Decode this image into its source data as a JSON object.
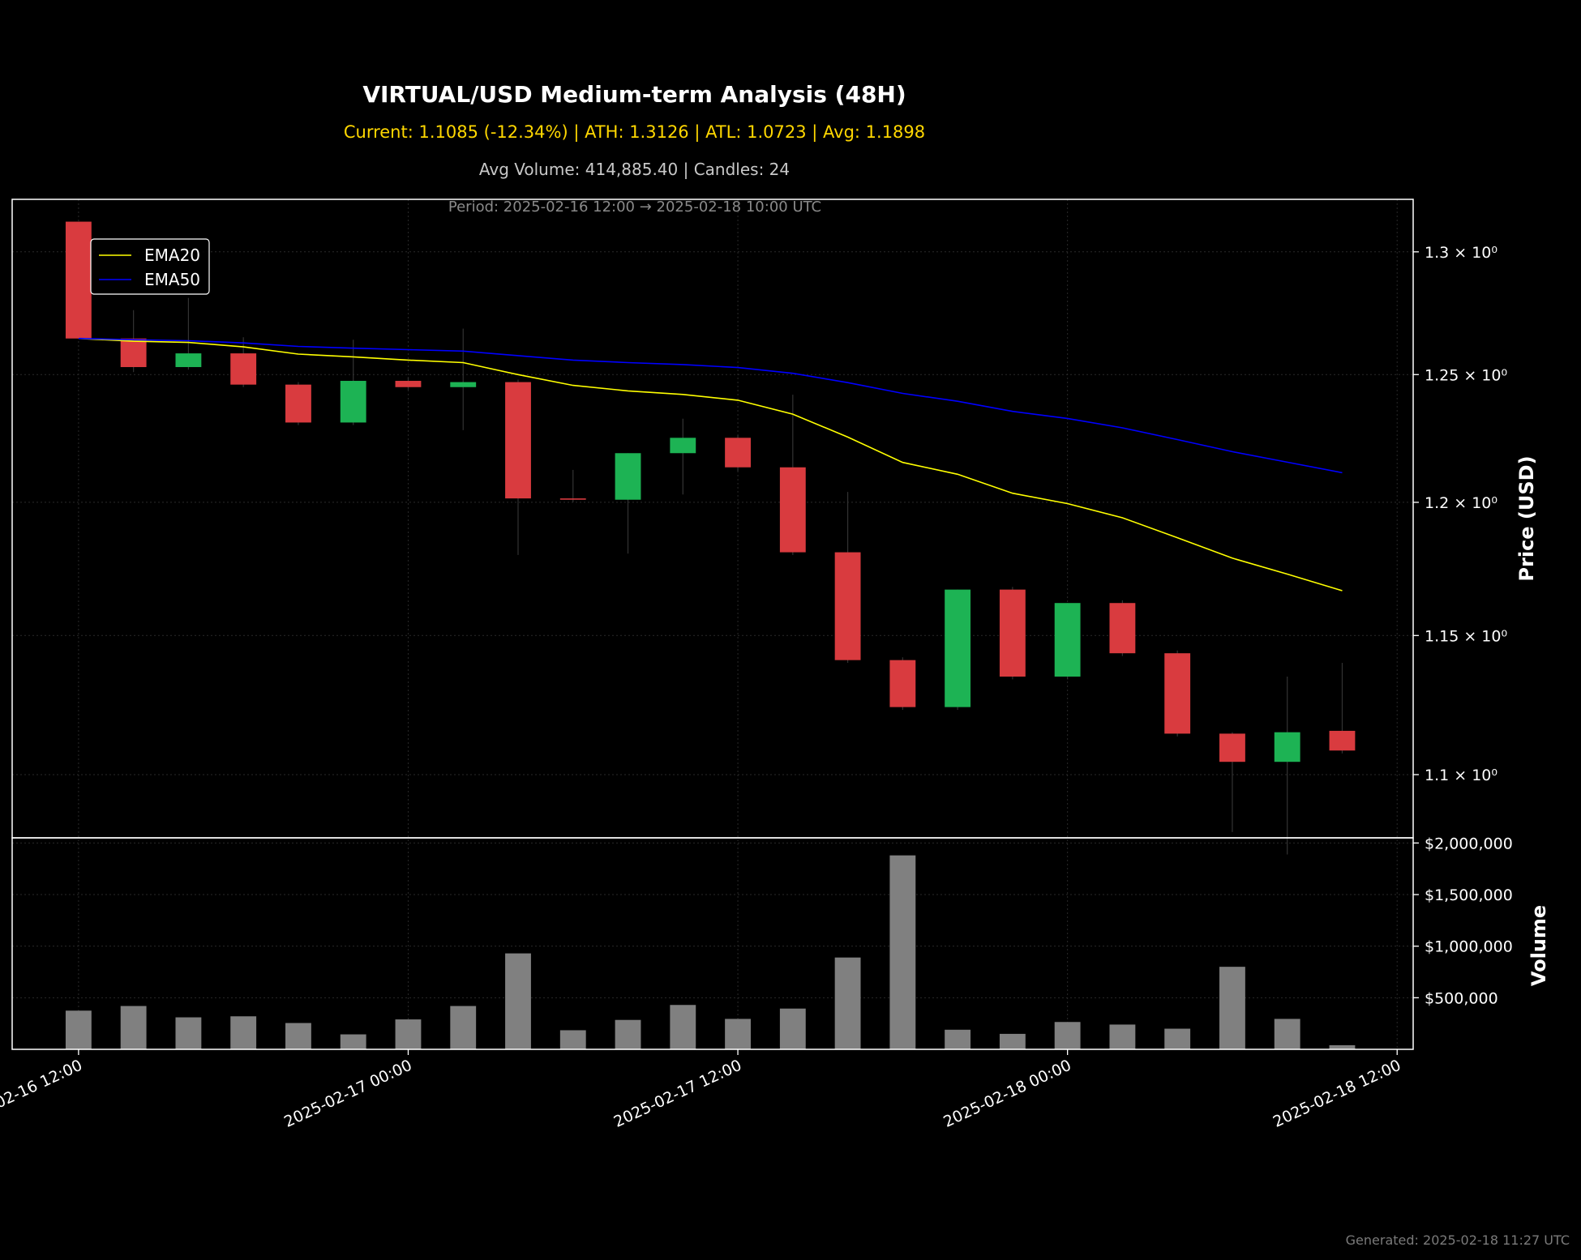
{
  "chart_data": {
    "type": "candlestick",
    "title": "VIRTUAL/USD Medium-term Analysis (48H)",
    "subtitle_1": "Current: 1.1085 (-12.34%) | ATH: 1.3126 | ATL: 1.0723 | Avg: 1.1898",
    "subtitle_2": "Avg Volume: 414,885.40 | Candles: 24",
    "period": "Period: 2025-02-16 12:00 → 2025-02-18 10:00 UTC",
    "footer": "Generated: 2025-02-18 11:27 UTC",
    "price_axis": {
      "label": "Price (USD)",
      "scale": "log",
      "ylim": [
        1.078,
        1.322
      ],
      "ticks": [
        1.1,
        1.15,
        1.2,
        1.25,
        1.3
      ],
      "tick_labels": [
        "1.1 × 10⁰",
        "1.15 × 10⁰",
        "1.2 × 10⁰",
        "1.25 × 10⁰",
        "1.3 × 10⁰"
      ]
    },
    "volume_axis": {
      "label": "Volume",
      "ylim": [
        0,
        2050000
      ],
      "ticks": [
        500000,
        1000000,
        1500000,
        2000000
      ],
      "tick_labels": [
        "$500,000",
        "$1,000,000",
        "$1,500,000",
        "$2,000,000"
      ]
    },
    "x_axis": {
      "xlim": [
        "2025-02-16 09:35",
        "2025-02-18 12:35"
      ],
      "ticks": [
        "2025-02-16 12:00",
        "2025-02-17 00:00",
        "2025-02-17 12:00",
        "2025-02-18 00:00",
        "2025-02-18 12:00"
      ],
      "tick_labels": [
        "2025-02-16 12:00",
        "2025-02-17 00:00",
        "2025-02-17 12:00",
        "2025-02-18 00:00",
        "2025-02-18 12:00"
      ]
    },
    "legend": {
      "placement": "upper-left",
      "entries": [
        {
          "name": "EMA20",
          "color": "#ffff00"
        },
        {
          "name": "EMA50",
          "color": "#0000ff"
        }
      ]
    },
    "colors": {
      "up": "#1db354",
      "down": "#d93b3f",
      "volume": "#808080",
      "background": "#000000",
      "grid": "#2a2a2a"
    },
    "candles": [
      {
        "time": "2025-02-16 12:00",
        "open": 1.3126,
        "high": 1.3126,
        "close": 1.2645,
        "low": 1.2645
      },
      {
        "time": "2025-02-16 14:00",
        "open": 1.2645,
        "high": 1.276,
        "close": 1.253,
        "low": 1.251
      },
      {
        "time": "2025-02-16 16:00",
        "open": 1.253,
        "high": 1.281,
        "close": 1.2585,
        "low": 1.252
      },
      {
        "time": "2025-02-16 18:00",
        "open": 1.2585,
        "high": 1.265,
        "close": 1.246,
        "low": 1.245
      },
      {
        "time": "2025-02-16 20:00",
        "open": 1.246,
        "high": 1.247,
        "close": 1.231,
        "low": 1.23
      },
      {
        "time": "2025-02-16 22:00",
        "open": 1.231,
        "high": 1.264,
        "close": 1.2475,
        "low": 1.23
      },
      {
        "time": "2025-02-17 00:00",
        "open": 1.2475,
        "high": 1.249,
        "close": 1.245,
        "low": 1.244
      },
      {
        "time": "2025-02-17 02:00",
        "open": 1.245,
        "high": 1.2685,
        "close": 1.247,
        "low": 1.228
      },
      {
        "time": "2025-02-17 04:00",
        "open": 1.247,
        "high": 1.248,
        "close": 1.2015,
        "low": 1.18
      },
      {
        "time": "2025-02-17 06:00",
        "open": 1.2015,
        "high": 1.2125,
        "close": 1.201,
        "low": 1.2
      },
      {
        "time": "2025-02-17 08:00",
        "open": 1.201,
        "high": 1.219,
        "close": 1.219,
        "low": 1.1805
      },
      {
        "time": "2025-02-17 10:00",
        "open": 1.219,
        "high": 1.2325,
        "close": 1.225,
        "low": 1.203
      },
      {
        "time": "2025-02-17 12:00",
        "open": 1.225,
        "high": 1.226,
        "close": 1.2135,
        "low": 1.212
      },
      {
        "time": "2025-02-17 14:00",
        "open": 1.2135,
        "high": 1.242,
        "close": 1.181,
        "low": 1.18
      },
      {
        "time": "2025-02-17 16:00",
        "open": 1.181,
        "high": 1.204,
        "close": 1.141,
        "low": 1.14
      },
      {
        "time": "2025-02-17 18:00",
        "open": 1.141,
        "high": 1.142,
        "close": 1.124,
        "low": 1.123
      },
      {
        "time": "2025-02-17 20:00",
        "open": 1.124,
        "high": 1.167,
        "close": 1.167,
        "low": 1.123
      },
      {
        "time": "2025-02-17 22:00",
        "open": 1.167,
        "high": 1.168,
        "close": 1.135,
        "low": 1.134
      },
      {
        "time": "2025-02-18 00:00",
        "open": 1.135,
        "high": 1.162,
        "close": 1.162,
        "low": 1.134
      },
      {
        "time": "2025-02-18 02:00",
        "open": 1.162,
        "high": 1.163,
        "close": 1.1435,
        "low": 1.1425
      },
      {
        "time": "2025-02-18 04:00",
        "open": 1.1435,
        "high": 1.1445,
        "close": 1.1145,
        "low": 1.1135
      },
      {
        "time": "2025-02-18 06:00",
        "open": 1.1145,
        "high": 1.115,
        "close": 1.1045,
        "low": 1.08
      },
      {
        "time": "2025-02-18 08:00",
        "open": 1.1045,
        "high": 1.135,
        "close": 1.115,
        "low": 1.0723
      },
      {
        "time": "2025-02-18 10:00",
        "open": 1.1155,
        "high": 1.14,
        "close": 1.1085,
        "low": 1.1075
      }
    ],
    "volume": [
      375000,
      420000,
      310000,
      320000,
      255000,
      145000,
      290000,
      420000,
      930000,
      185000,
      285000,
      430000,
      295000,
      395000,
      890000,
      1880000,
      190000,
      150000,
      265000,
      240000,
      200000,
      800000,
      295000,
      40000
    ],
    "series": [
      {
        "name": "EMA20",
        "values": [
          1.2645,
          1.2634,
          1.2629,
          1.2611,
          1.2582,
          1.2571,
          1.2558,
          1.2548,
          1.25,
          1.2457,
          1.2435,
          1.2421,
          1.2398,
          1.2343,
          1.2253,
          1.2154,
          1.2108,
          1.2035,
          1.1995,
          1.1941,
          1.1865,
          1.1788,
          1.1728,
          1.1666
        ]
      },
      {
        "name": "EMA50",
        "values": [
          1.2645,
          1.264,
          1.2636,
          1.2627,
          1.2613,
          1.2606,
          1.26,
          1.2594,
          1.2576,
          1.2558,
          1.2548,
          1.254,
          1.2528,
          1.2505,
          1.2468,
          1.2425,
          1.2394,
          1.2354,
          1.2326,
          1.2289,
          1.2243,
          1.2196,
          1.2155,
          1.2114
        ]
      }
    ]
  }
}
